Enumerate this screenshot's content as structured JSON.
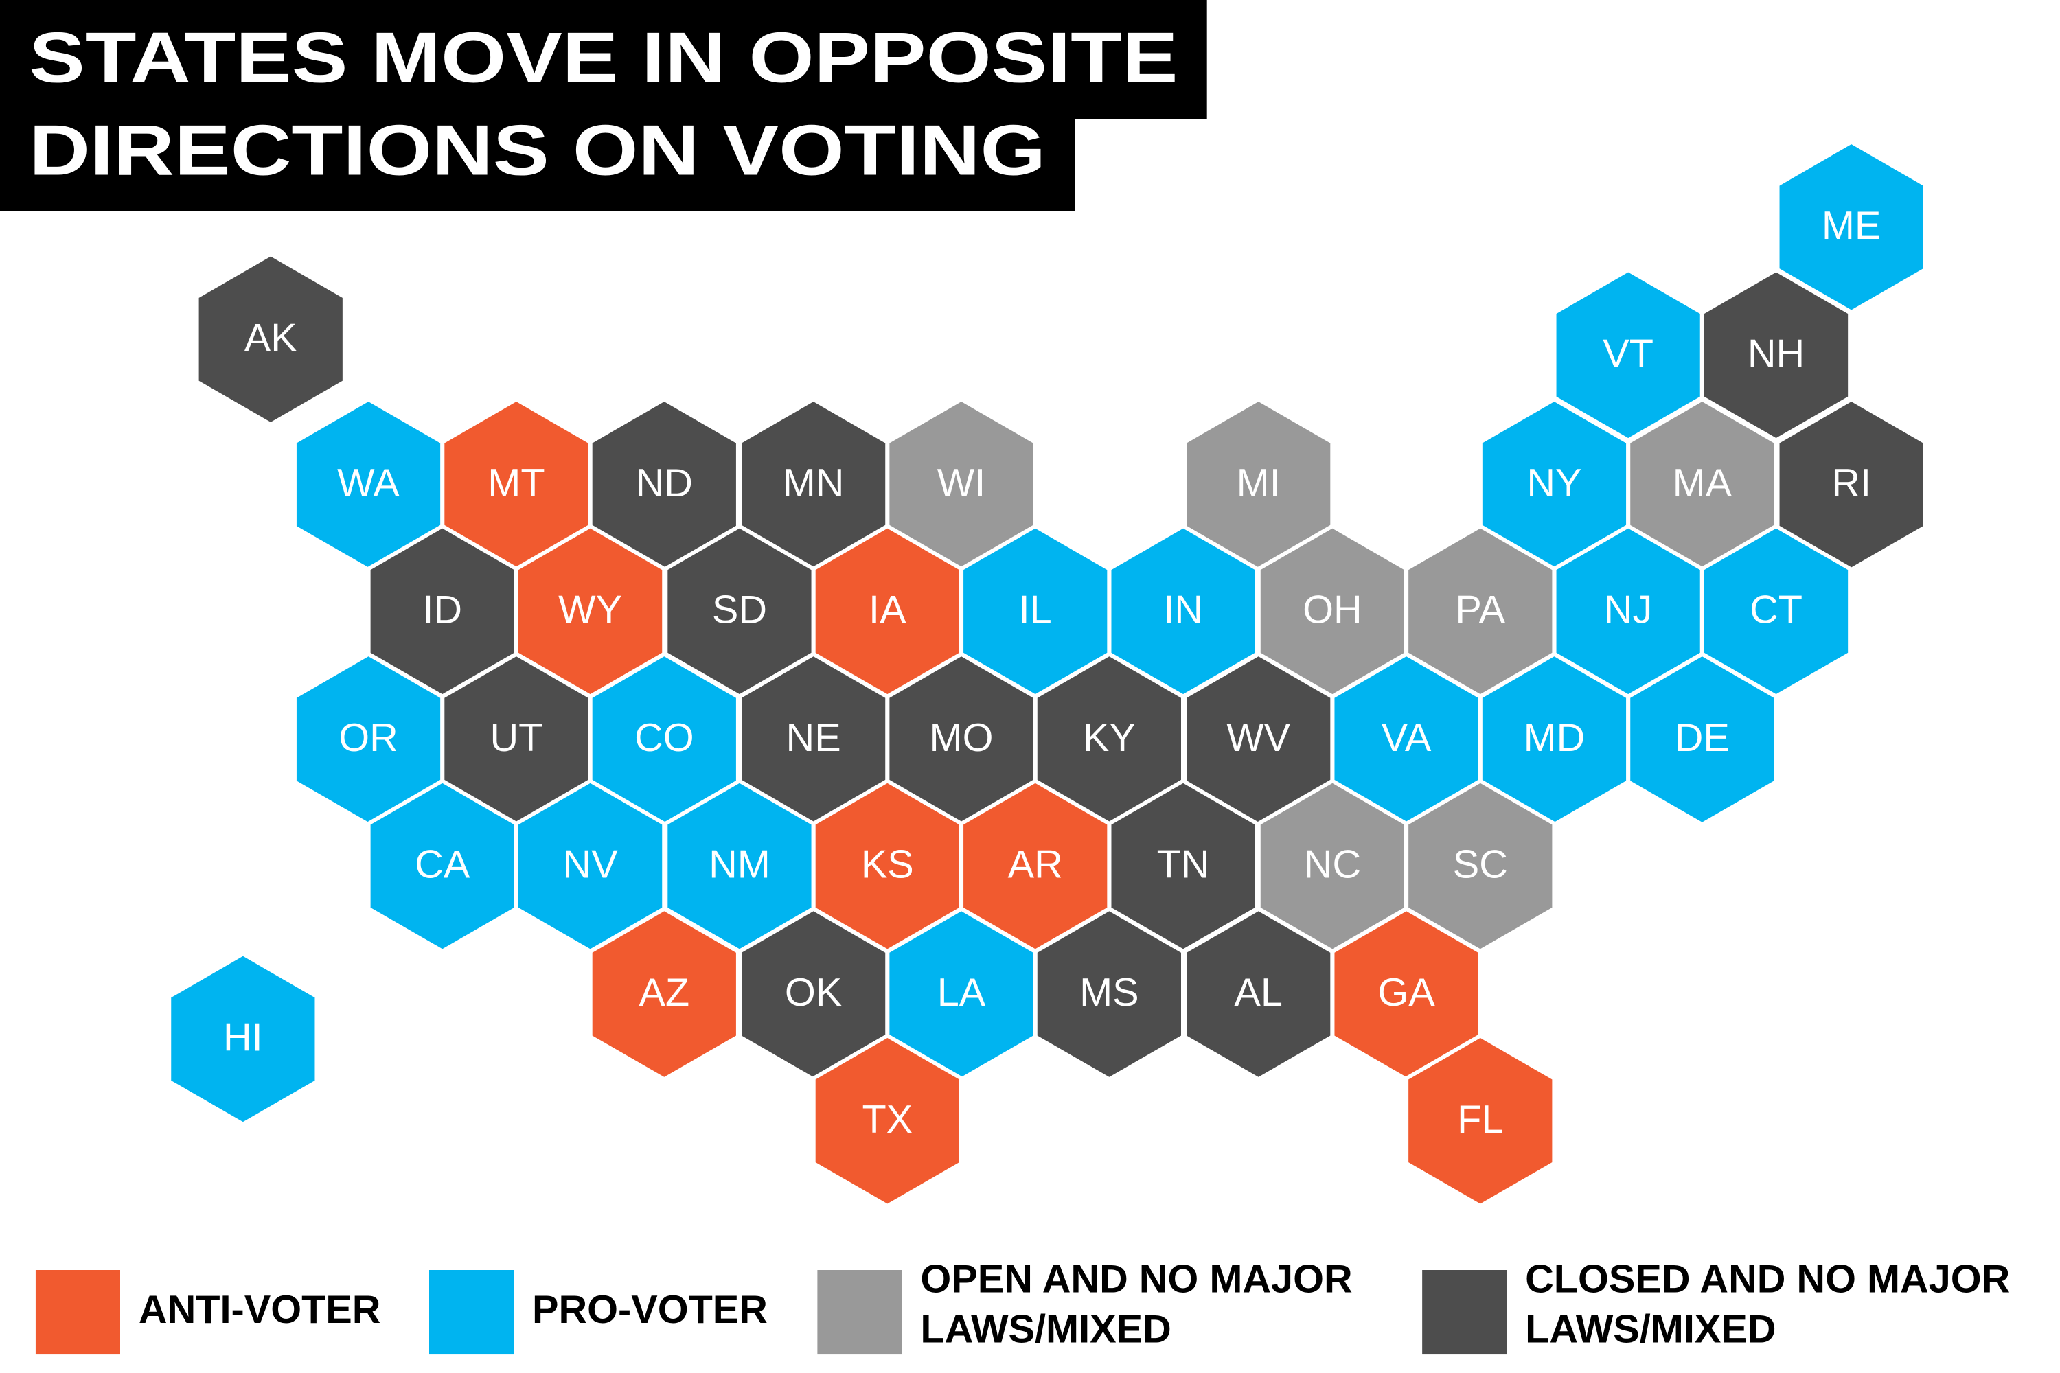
{
  "title": {
    "lines": [
      "STATES MOVE IN OPPOSITE",
      "DIRECTIONS ON VOTING"
    ]
  },
  "legend": [
    {
      "lines": [
        "ANTI-VOTER"
      ],
      "color": "#f15a2f"
    },
    {
      "lines": [
        "PRO-VOTER"
      ],
      "color": "#00b4f0"
    },
    {
      "lines": [
        "OPEN AND NO MAJOR",
        "LAWS/MIXED"
      ],
      "color": "#999999"
    },
    {
      "lines": [
        "CLOSED AND NO MAJOR",
        "LAWS/MIXED"
      ],
      "color": "#4d4d4d"
    }
  ],
  "states": [
    {
      "abbr": "AK",
      "color": "#4d4d4d"
    },
    {
      "abbr": "ME",
      "color": "#00b4f0"
    },
    {
      "abbr": "VT",
      "color": "#00b4f0"
    },
    {
      "abbr": "NH",
      "color": "#4d4d4d"
    },
    {
      "abbr": "WA",
      "color": "#00b4f0"
    },
    {
      "abbr": "MT",
      "color": "#f15a2f"
    },
    {
      "abbr": "ND",
      "color": "#4d4d4d"
    },
    {
      "abbr": "MN",
      "color": "#4d4d4d"
    },
    {
      "abbr": "WI",
      "color": "#999999"
    },
    {
      "abbr": "MI",
      "color": "#999999"
    },
    {
      "abbr": "NY",
      "color": "#00b4f0"
    },
    {
      "abbr": "MA",
      "color": "#999999"
    },
    {
      "abbr": "RI",
      "color": "#4d4d4d"
    },
    {
      "abbr": "ID",
      "color": "#4d4d4d"
    },
    {
      "abbr": "WY",
      "color": "#f15a2f"
    },
    {
      "abbr": "SD",
      "color": "#4d4d4d"
    },
    {
      "abbr": "IA",
      "color": "#f15a2f"
    },
    {
      "abbr": "IL",
      "color": "#00b4f0"
    },
    {
      "abbr": "IN",
      "color": "#00b4f0"
    },
    {
      "abbr": "OH",
      "color": "#999999"
    },
    {
      "abbr": "PA",
      "color": "#999999"
    },
    {
      "abbr": "NJ",
      "color": "#00b4f0"
    },
    {
      "abbr": "CT",
      "color": "#00b4f0"
    },
    {
      "abbr": "OR",
      "color": "#00b4f0"
    },
    {
      "abbr": "UT",
      "color": "#4d4d4d"
    },
    {
      "abbr": "CO",
      "color": "#00b4f0"
    },
    {
      "abbr": "NE",
      "color": "#4d4d4d"
    },
    {
      "abbr": "MO",
      "color": "#4d4d4d"
    },
    {
      "abbr": "KY",
      "color": "#4d4d4d"
    },
    {
      "abbr": "WV",
      "color": "#4d4d4d"
    },
    {
      "abbr": "VA",
      "color": "#00b4f0"
    },
    {
      "abbr": "MD",
      "color": "#00b4f0"
    },
    {
      "abbr": "DE",
      "color": "#00b4f0"
    },
    {
      "abbr": "CA",
      "color": "#00b4f0"
    },
    {
      "abbr": "NV",
      "color": "#00b4f0"
    },
    {
      "abbr": "NM",
      "color": "#00b4f0"
    },
    {
      "abbr": "KS",
      "color": "#f15a2f"
    },
    {
      "abbr": "AR",
      "color": "#f15a2f"
    },
    {
      "abbr": "TN",
      "color": "#4d4d4d"
    },
    {
      "abbr": "NC",
      "color": "#999999"
    },
    {
      "abbr": "SC",
      "color": "#999999"
    },
    {
      "abbr": "AZ",
      "color": "#f15a2f"
    },
    {
      "abbr": "OK",
      "color": "#4d4d4d"
    },
    {
      "abbr": "LA",
      "color": "#00b4f0"
    },
    {
      "abbr": "MS",
      "color": "#4d4d4d"
    },
    {
      "abbr": "AL",
      "color": "#4d4d4d"
    },
    {
      "abbr": "GA",
      "color": "#f15a2f"
    },
    {
      "abbr": "HI",
      "color": "#00b4f0"
    },
    {
      "abbr": "TX",
      "color": "#f15a2f"
    },
    {
      "abbr": "FL",
      "color": "#f15a2f"
    }
  ]
}
